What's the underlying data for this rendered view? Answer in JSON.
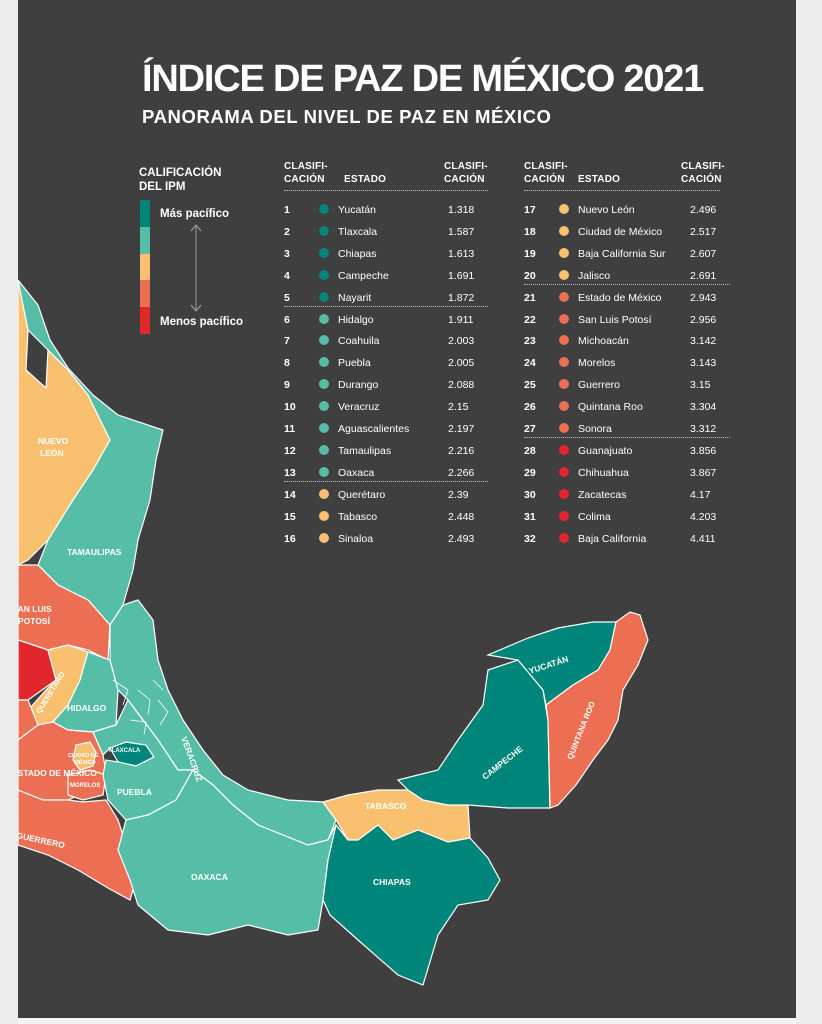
{
  "title": "ÍNDICE DE PAZ DE MÉXICO 2021",
  "subtitle": "PANORAMA DEL NIVEL DE PAZ EN MÉXICO",
  "legend": {
    "title_line1": "CALIFICACIÓN",
    "title_line2": "DEL IPM",
    "top_label": "Más pacífico",
    "bottom_label": "Menos pacífico",
    "colors": [
      "#00857a",
      "#56bea7",
      "#f9c06f",
      "#ec6f53",
      "#e2262e"
    ]
  },
  "table_headers": {
    "rank_line1": "CLASIFI-",
    "rank_line2": "CACIÓN",
    "state": "ESTADO",
    "score_line1": "CLASIFI-",
    "score_line2": "CACIÓN"
  },
  "rankings": [
    {
      "rank": "1",
      "state": "Yucatán",
      "score": "1.318",
      "color": "#00857a"
    },
    {
      "rank": "2",
      "state": "Tlaxcala",
      "score": "1.587",
      "color": "#00857a"
    },
    {
      "rank": "3",
      "state": "Chiapas",
      "score": "1.613",
      "color": "#00857a"
    },
    {
      "rank": "4",
      "state": "Campeche",
      "score": "1.691",
      "color": "#00857a"
    },
    {
      "rank": "5",
      "state": "Nayarit",
      "score": "1.872",
      "color": "#00857a"
    },
    {
      "rank": "6",
      "state": "Hidalgo",
      "score": "1.911",
      "color": "#56bea7"
    },
    {
      "rank": "7",
      "state": "Coahuila",
      "score": "2.003",
      "color": "#56bea7"
    },
    {
      "rank": "8",
      "state": "Puebla",
      "score": "2.005",
      "color": "#56bea7"
    },
    {
      "rank": "9",
      "state": "Durango",
      "score": "2.088",
      "color": "#56bea7"
    },
    {
      "rank": "10",
      "state": "Veracruz",
      "score": "2.15",
      "color": "#56bea7"
    },
    {
      "rank": "11",
      "state": "Aguascalientes",
      "score": "2.197",
      "color": "#56bea7"
    },
    {
      "rank": "12",
      "state": "Tamaulipas",
      "score": "2.216",
      "color": "#56bea7"
    },
    {
      "rank": "13",
      "state": "Oaxaca",
      "score": "2.266",
      "color": "#56bea7"
    },
    {
      "rank": "14",
      "state": "Querétaro",
      "score": "2.39",
      "color": "#f9c06f"
    },
    {
      "rank": "15",
      "state": "Tabasco",
      "score": "2.448",
      "color": "#f9c06f"
    },
    {
      "rank": "16",
      "state": "Sinaloa",
      "score": "2.493",
      "color": "#f9c06f"
    },
    {
      "rank": "17",
      "state": "Nuevo León",
      "score": "2.496",
      "color": "#f9c06f"
    },
    {
      "rank": "18",
      "state": "Ciudad de México",
      "score": "2.517",
      "color": "#f9c06f"
    },
    {
      "rank": "19",
      "state": "Baja California Sur",
      "score": "2.607",
      "color": "#f9c06f"
    },
    {
      "rank": "20",
      "state": "Jalisco",
      "score": "2.691",
      "color": "#f9c06f"
    },
    {
      "rank": "21",
      "state": "Estado de México",
      "score": "2.943",
      "color": "#ec6f53"
    },
    {
      "rank": "22",
      "state": "San Luis Potosí",
      "score": "2.956",
      "color": "#ec6f53"
    },
    {
      "rank": "23",
      "state": "Michoacán",
      "score": "3.142",
      "color": "#ec6f53"
    },
    {
      "rank": "24",
      "state": "Morelos",
      "score": "3.143",
      "color": "#ec6f53"
    },
    {
      "rank": "25",
      "state": "Guerrero",
      "score": "3.15",
      "color": "#ec6f53"
    },
    {
      "rank": "26",
      "state": "Quintana Roo",
      "score": "3.304",
      "color": "#ec6f53"
    },
    {
      "rank": "27",
      "state": "Sonora",
      "score": "3.312",
      "color": "#ec6f53"
    },
    {
      "rank": "28",
      "state": "Guanajuato",
      "score": "3.856",
      "color": "#e2262e"
    },
    {
      "rank": "29",
      "state": "Chihuahua",
      "score": "3.867",
      "color": "#e2262e"
    },
    {
      "rank": "30",
      "state": "Zacatecas",
      "score": "4.17",
      "color": "#e2262e"
    },
    {
      "rank": "31",
      "state": "Colima",
      "score": "4.203",
      "color": "#e2262e"
    },
    {
      "rank": "32",
      "state": "Baja California",
      "score": "4.411",
      "color": "#e2262e"
    }
  ],
  "map_labels": {
    "nuevo_leon_1": "NUEVO",
    "nuevo_leon_2": "LEÓN",
    "tamaulipas": "TAMAULIPAS",
    "san_luis_1": "SAN LUIS",
    "san_luis_2": "POTOSÍ",
    "queretaro": "QUERÉTARO",
    "hidalgo": "HIDALGO",
    "tlaxcala": "TLAXCALA",
    "cdmx_1": "CIUDAD DE",
    "cdmx_2": "MÉXICO",
    "edomex": "ESTADO DE MÉXICO",
    "morelos": "MORELOS",
    "puebla": "PUEBLA",
    "veracruz": "VERACRUZ",
    "guerrero": "GUERRERO",
    "oaxaca": "OAXACA",
    "tabasco": "TABASCO",
    "chiapas": "CHIAPAS",
    "campeche": "CAMPECHE",
    "yucatan": "YUCATÁN",
    "quintana_roo": "QUINTANA ROO"
  }
}
